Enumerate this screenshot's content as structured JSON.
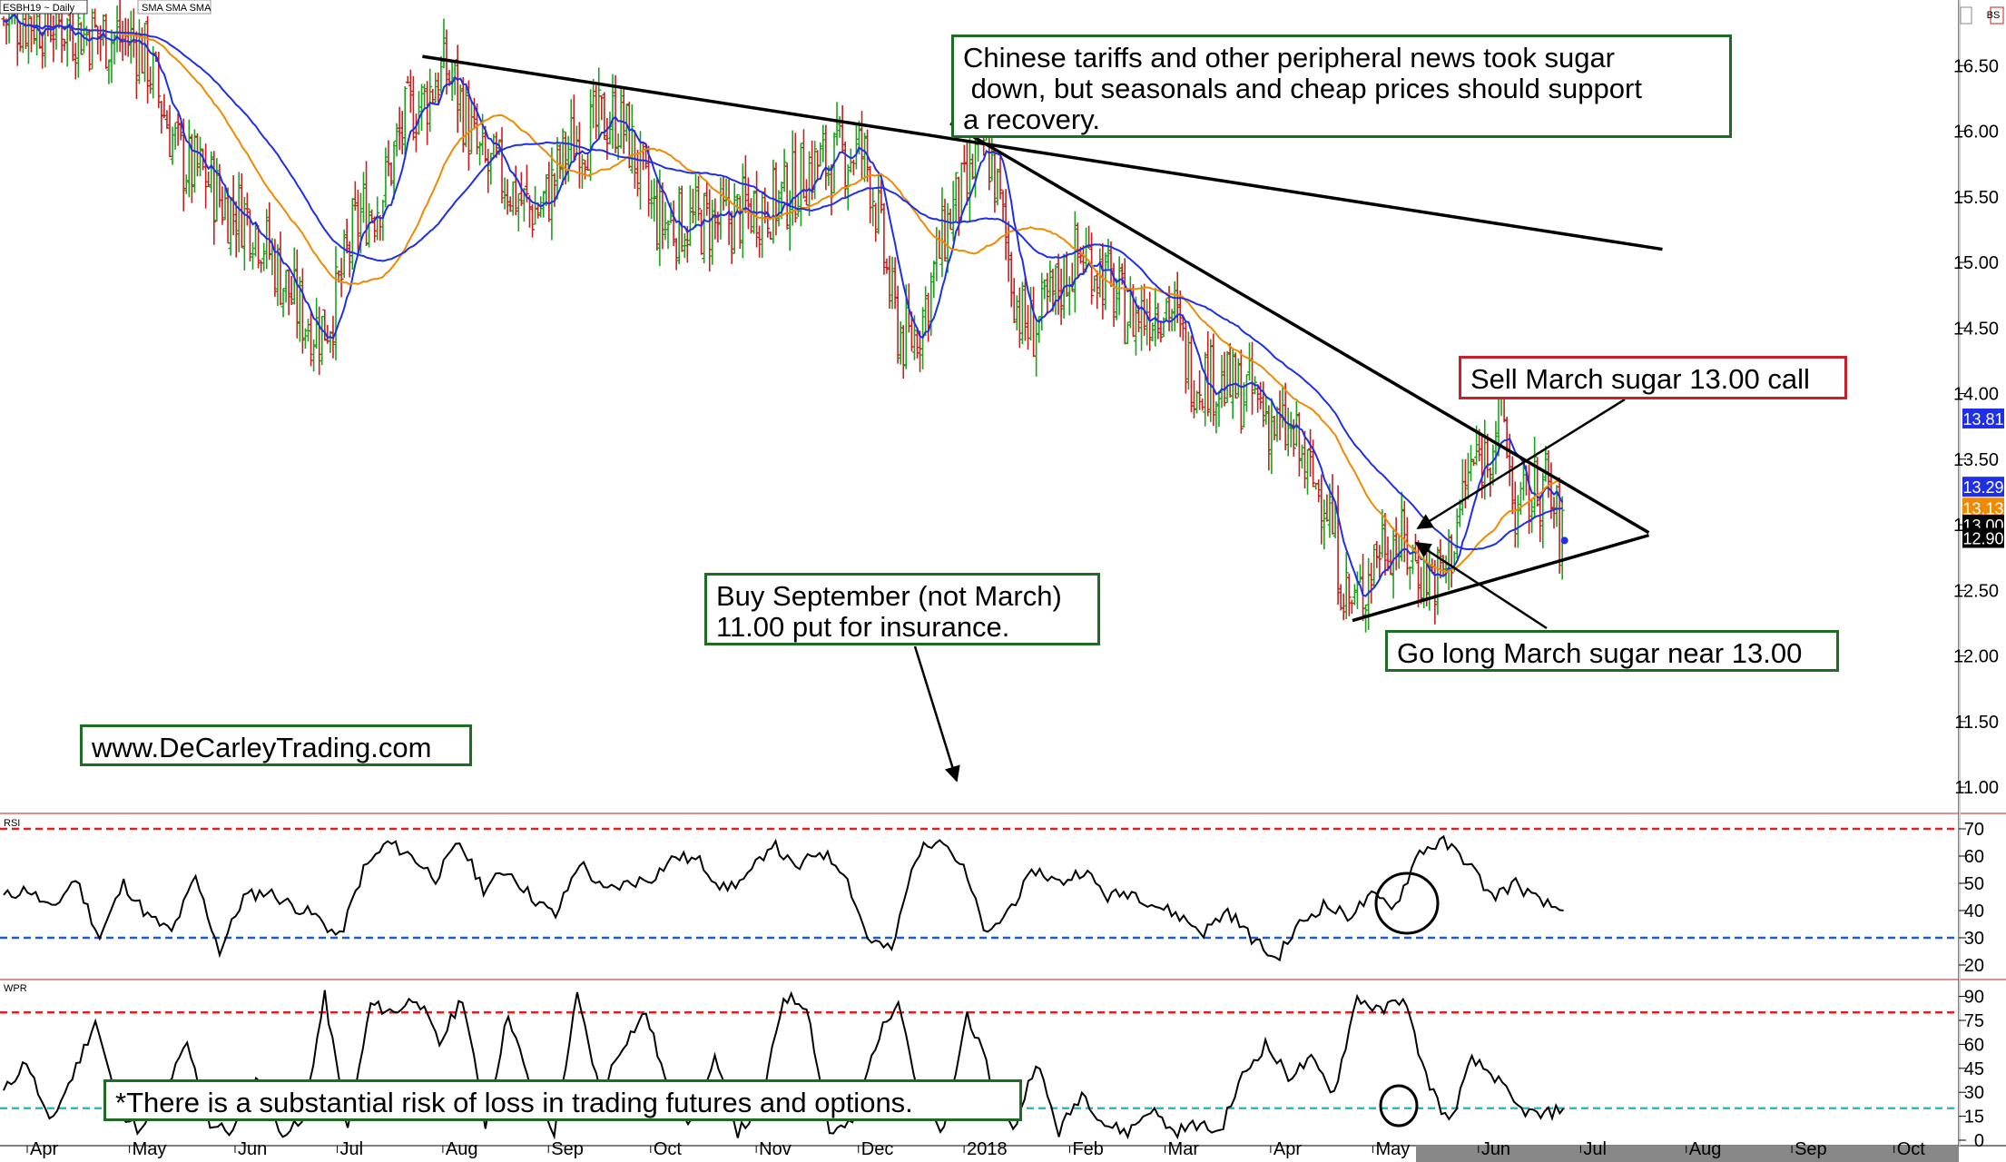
{
  "window": {
    "symbol_label": "ESBH19 ~ Daily",
    "overlay_label": "SMA SMA SMA"
  },
  "colors": {
    "up_bar": "#1aa31a",
    "down_bar": "#c81e1e",
    "sma_fast": "#1f2fe6",
    "sma_mid": "#f08a00",
    "sma_slow": "#1f2fe6",
    "trendline": "#000000",
    "annotation_border": "#1e6b24",
    "annotation_border_alt": "#c8202a",
    "rsi_upper": "#e02020",
    "rsi_lower": "#1a5ec8",
    "wpr_upper": "#e02020",
    "wpr_lower": "#22c0c0"
  },
  "annotations": {
    "tariffs": "Chinese tariffs and other peripheral news took sugar\n down, but seasonals and cheap prices should support\na recovery.",
    "sell_call": "Sell March sugar 13.00 call",
    "go_long": "Go long March sugar near 13.00",
    "buy_put": "Buy September (not March)\n11.00 put for insurance.",
    "website": "www.DeCarleyTrading.com",
    "disclaimer": "*There is a substantial risk of loss in trading futures and options."
  },
  "price_badges": [
    {
      "value": "13.81",
      "color": "#1f2fe6"
    },
    {
      "value": "13.29",
      "color": "#1f2fe6"
    },
    {
      "value": "13.13",
      "color": "#f08a00"
    },
    {
      "value": "13.00",
      "color": "#000000"
    },
    {
      "value": "12.90",
      "color": "#000000"
    }
  ],
  "chart_data": [
    {
      "type": "ohlc",
      "title": "ESBH19 ~ Daily",
      "x_ticks": [
        "Apr",
        "May",
        "Jun",
        "Jul",
        "Aug",
        "Sep",
        "Oct",
        "Nov",
        "Dec",
        "2018",
        "Feb",
        "Mar",
        "Apr",
        "May",
        "Jun",
        "Jul",
        "Aug",
        "Sep",
        "Oct"
      ],
      "y_ticks": [
        "16.50",
        "16.00",
        "15.50",
        "15.00",
        "14.50",
        "14.00",
        "13.50",
        "13.00",
        "12.50",
        "12.00",
        "11.50",
        "11.00"
      ],
      "ylim": [
        10.8,
        17.0
      ],
      "series": [
        {
          "values": [
            {
              "date": "2017-04-01",
              "close": 16.85
            },
            {
              "date": "2017-05-01",
              "close": 16.7
            },
            {
              "date": "2017-05-20",
              "close": 15.7
            },
            {
              "date": "2017-06-01",
              "close": 15.4
            },
            {
              "date": "2017-06-26",
              "close": 14.5
            },
            {
              "date": "2017-07-10",
              "close": 15.4
            },
            {
              "date": "2017-07-25",
              "close": 16.2
            },
            {
              "date": "2017-08-01",
              "close": 16.45
            },
            {
              "date": "2017-08-15",
              "close": 15.7
            },
            {
              "date": "2017-08-28",
              "close": 15.4
            },
            {
              "date": "2017-09-10",
              "close": 15.95
            },
            {
              "date": "2017-09-20",
              "close": 16.1
            },
            {
              "date": "2017-10-05",
              "close": 15.3
            },
            {
              "date": "2017-10-20",
              "close": 15.3
            },
            {
              "date": "2017-11-05",
              "close": 15.45
            },
            {
              "date": "2017-11-20",
              "close": 15.75
            },
            {
              "date": "2017-12-01",
              "close": 15.85
            },
            {
              "date": "2017-12-15",
              "close": 14.4
            },
            {
              "date": "2018-01-01",
              "close": 15.5
            },
            {
              "date": "2018-01-06",
              "close": 15.9
            },
            {
              "date": "2018-01-20",
              "close": 14.5
            },
            {
              "date": "2018-02-05",
              "close": 15.05
            },
            {
              "date": "2018-02-20",
              "close": 14.6
            },
            {
              "date": "2018-03-01",
              "close": 14.7
            },
            {
              "date": "2018-03-10",
              "close": 14.15
            },
            {
              "date": "2018-03-25",
              "close": 14.0
            },
            {
              "date": "2018-04-05",
              "close": 13.7
            },
            {
              "date": "2018-04-15",
              "close": 13.3
            },
            {
              "date": "2018-04-25",
              "close": 12.4
            },
            {
              "date": "2018-05-05",
              "close": 12.9
            },
            {
              "date": "2018-05-20",
              "close": 12.6
            },
            {
              "date": "2018-06-01",
              "close": 13.5
            },
            {
              "date": "2018-06-08",
              "close": 13.8
            },
            {
              "date": "2018-06-12",
              "close": 13.1
            },
            {
              "date": "2018-06-20",
              "close": 13.3
            },
            {
              "date": "2018-06-26",
              "close": 12.9
            }
          ]
        }
      ]
    },
    {
      "type": "line",
      "title": "RSI",
      "y_ticks": [
        "70",
        "60",
        "50",
        "40",
        "30",
        "20"
      ],
      "ylim": [
        15,
        75
      ],
      "reference_lines": [
        70,
        30
      ],
      "values": [
        45,
        48,
        40,
        52,
        30,
        50,
        38,
        32,
        52,
        25,
        45,
        47,
        42,
        38,
        30,
        55,
        65,
        60,
        52,
        65,
        48,
        55,
        45,
        38,
        58,
        47,
        50,
        52,
        60,
        58,
        48,
        52,
        65,
        55,
        62,
        55,
        30,
        25,
        60,
        68,
        55,
        30,
        42,
        55,
        50,
        55,
        45,
        47,
        42,
        38,
        32,
        40,
        30,
        22,
        35,
        42,
        38,
        45,
        42,
        62,
        65,
        58,
        45,
        50,
        43,
        40
      ]
    },
    {
      "type": "line",
      "title": "WPR",
      "y_ticks": [
        "90",
        "75",
        "60",
        "45",
        "30",
        "15",
        "0"
      ],
      "ylim": [
        0,
        100
      ],
      "reference_lines": [
        80,
        20
      ],
      "values": [
        30,
        50,
        10,
        40,
        75,
        20,
        5,
        30,
        60,
        10,
        5,
        40,
        5,
        10,
        90,
        5,
        85,
        80,
        90,
        60,
        90,
        10,
        80,
        30,
        5,
        90,
        30,
        60,
        80,
        30,
        10,
        50,
        5,
        20,
        90,
        85,
        5,
        10,
        60,
        90,
        20,
        5,
        80,
        40,
        5,
        50,
        5,
        30,
        10,
        5,
        20,
        5,
        10,
        5,
        40,
        60,
        40,
        50,
        30,
        90,
        80,
        90,
        40,
        10,
        50,
        40,
        20,
        15,
        20
      ]
    }
  ]
}
